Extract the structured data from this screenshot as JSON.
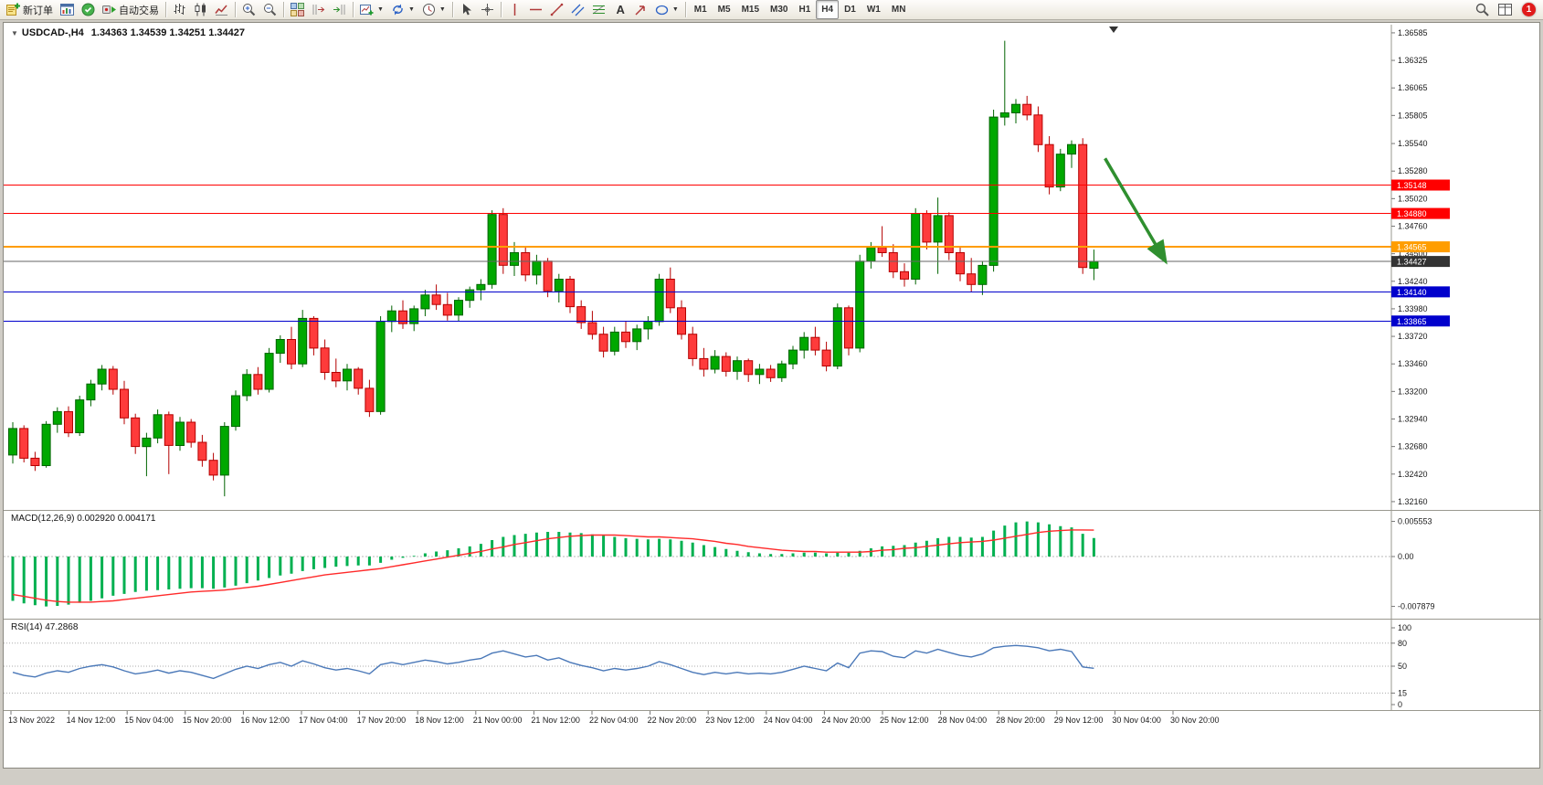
{
  "toolbar": {
    "badge_count": "1",
    "buttons": [
      {
        "name": "new-order-button",
        "icon": "new-order-icon",
        "label": "新订单",
        "group_start": true
      },
      {
        "name": "charts-button",
        "icon": "chart-window-icon"
      },
      {
        "name": "market-watch-button",
        "icon": "market-watch-icon"
      },
      {
        "name": "auto-trading-button",
        "icon": "auto-trading-icon",
        "label": "自动交易"
      },
      {
        "name": "bars-chart-button",
        "icon": "bars-chart-icon",
        "group_start": true
      },
      {
        "name": "candlestick-chart-button",
        "icon": "candlestick-chart-icon"
      },
      {
        "name": "line-chart-button",
        "icon": "line-chart-icon"
      },
      {
        "name": "zoom-in-button",
        "icon": "zoom-in-icon",
        "group_start": true
      },
      {
        "name": "zoom-out-button",
        "icon": "zoom-out-icon"
      },
      {
        "name": "tile-windows-button",
        "icon": "tile-windows-icon",
        "group_start": true
      },
      {
        "name": "chart-shift-button",
        "icon": "chart-shift-icon"
      },
      {
        "name": "auto-scroll-button",
        "icon": "auto-scroll-icon"
      },
      {
        "name": "new-chart-button",
        "icon": "new-chart-icon",
        "caret": true,
        "group_start": true
      },
      {
        "name": "profiles-button",
        "icon": "profiles-icon",
        "caret": true
      },
      {
        "name": "period-button",
        "icon": "clock-icon",
        "caret": true
      },
      {
        "name": "cursor-button",
        "icon": "cursor-icon",
        "group_start": true
      },
      {
        "name": "crosshair-button",
        "icon": "crosshair-icon"
      },
      {
        "name": "vertical-line-button",
        "icon": "vertical-line-icon",
        "group_start": true
      },
      {
        "name": "horizontal-line-button",
        "icon": "horizontal-line-icon"
      },
      {
        "name": "trendline-button",
        "icon": "trendline-icon"
      },
      {
        "name": "channel-button",
        "icon": "channel-icon"
      },
      {
        "name": "fibonacci-button",
        "icon": "fibonacci-icon"
      },
      {
        "name": "text-button",
        "icon": "text-icon"
      },
      {
        "name": "arrows-button",
        "icon": "arrow-label-icon"
      },
      {
        "name": "shapes-button",
        "icon": "shapes-icon",
        "caret": true
      }
    ],
    "timeframes": [
      "M1",
      "M5",
      "M15",
      "M30",
      "H1",
      "H4",
      "D1",
      "W1",
      "MN"
    ],
    "active_timeframe": "H4",
    "right_buttons": [
      {
        "name": "symbol-search-button",
        "icon": "search-icon"
      },
      {
        "name": "data-window-button",
        "icon": "data-window-icon"
      }
    ]
  },
  "chart_header": {
    "symbol_period": "USDCAD-,H4",
    "ohlc": "1.34363 1.34539 1.34251 1.34427"
  },
  "indicators": {
    "macd_label": "MACD(12,26,9) 0.002920 0.004171",
    "rsi_label": "RSI(14) 47.2868"
  },
  "chart_data": [
    {
      "type": "candlestick",
      "title": "USDCAD H4",
      "up_color": "#00a800",
      "up_border": "#006400",
      "down_color": "#fe3b3b",
      "down_border": "#b40000",
      "price_axis_labels": [
        "1.36585",
        "1.36325",
        "1.36065",
        "1.35805",
        "1.35540",
        "1.35280",
        "1.35020",
        "1.34760",
        "1.34500",
        "1.34240",
        "1.33980",
        "1.33720",
        "1.33460",
        "1.33200",
        "1.32940",
        "1.32680",
        "1.32420",
        "1.32160"
      ],
      "horizontal_lines": [
        {
          "price": 1.35148,
          "label": "1.35148",
          "color": "#ff0000",
          "width": 1
        },
        {
          "price": 1.3488,
          "label": "1.34880",
          "color": "#ff0000",
          "width": 1
        },
        {
          "price": 1.34565,
          "label": "1.34565",
          "color": "#ff9d00",
          "width": 2
        },
        {
          "price": 1.3414,
          "label": "1.34140",
          "color": "#0000cc",
          "width": 1
        },
        {
          "price": 1.33865,
          "label": "1.33865",
          "color": "#0000cc",
          "width": 1
        }
      ],
      "current_price": {
        "value": 1.34427,
        "label": "1.34427",
        "line_color": "#666666",
        "box_color": "#333333"
      },
      "arrow_annotation": {
        "from_bar": 98,
        "from_price": 1.354,
        "to_bar": 103.3,
        "to_price": 1.3445,
        "color": "#2f8f2f"
      },
      "x_labels": [
        "13 Nov 2022",
        "14 Nov 12:00",
        "15 Nov 04:00",
        "15 Nov 20:00",
        "16 Nov 12:00",
        "17 Nov 04:00",
        "17 Nov 20:00",
        "18 Nov 12:00",
        "21 Nov 00:00",
        "21 Nov 12:00",
        "22 Nov 04:00",
        "22 Nov 20:00",
        "23 Nov 12:00",
        "24 Nov 04:00",
        "24 Nov 20:00",
        "25 Nov 12:00",
        "28 Nov 04:00",
        "28 Nov 20:00",
        "29 Nov 12:00",
        "30 Nov 04:00",
        "30 Nov 20:00"
      ],
      "candles": [
        [
          1.326,
          1.3291,
          1.3252,
          1.3285
        ],
        [
          1.3285,
          1.3288,
          1.3253,
          1.3257
        ],
        [
          1.3257,
          1.3263,
          1.3245,
          1.325
        ],
        [
          1.325,
          1.3292,
          1.3248,
          1.3289
        ],
        [
          1.3289,
          1.3305,
          1.3281,
          1.3301
        ],
        [
          1.3301,
          1.3306,
          1.3277,
          1.3281
        ],
        [
          1.3281,
          1.3316,
          1.3278,
          1.3312
        ],
        [
          1.3312,
          1.3331,
          1.3306,
          1.3327
        ],
        [
          1.3327,
          1.3345,
          1.3321,
          1.3341
        ],
        [
          1.3341,
          1.3344,
          1.3317,
          1.3322
        ],
        [
          1.3322,
          1.333,
          1.3289,
          1.3295
        ],
        [
          1.3295,
          1.3299,
          1.3261,
          1.3268
        ],
        [
          1.3268,
          1.3281,
          1.324,
          1.3276
        ],
        [
          1.3276,
          1.3303,
          1.3271,
          1.3298
        ],
        [
          1.3298,
          1.3301,
          1.3242,
          1.3269
        ],
        [
          1.3269,
          1.3296,
          1.3264,
          1.3291
        ],
        [
          1.3291,
          1.3294,
          1.3267,
          1.3272
        ],
        [
          1.3272,
          1.3279,
          1.3249,
          1.3255
        ],
        [
          1.3255,
          1.3262,
          1.3236,
          1.3241
        ],
        [
          1.3241,
          1.3291,
          1.3221,
          1.3287
        ],
        [
          1.3287,
          1.3321,
          1.3283,
          1.3316
        ],
        [
          1.3316,
          1.3341,
          1.3311,
          1.3336
        ],
        [
          1.3336,
          1.3343,
          1.3317,
          1.3322
        ],
        [
          1.3322,
          1.3361,
          1.3319,
          1.3356
        ],
        [
          1.3356,
          1.3373,
          1.3347,
          1.3369
        ],
        [
          1.3369,
          1.3381,
          1.3341,
          1.3346
        ],
        [
          1.3346,
          1.3397,
          1.3343,
          1.3389
        ],
        [
          1.3389,
          1.3391,
          1.3354,
          1.3361
        ],
        [
          1.3361,
          1.3369,
          1.3331,
          1.3338
        ],
        [
          1.3338,
          1.3351,
          1.3324,
          1.333
        ],
        [
          1.333,
          1.3346,
          1.3321,
          1.3341
        ],
        [
          1.3341,
          1.3343,
          1.3317,
          1.3323
        ],
        [
          1.3323,
          1.3331,
          1.3296,
          1.3301
        ],
        [
          1.3301,
          1.3391,
          1.3298,
          1.3386
        ],
        [
          1.3386,
          1.3401,
          1.3376,
          1.3396
        ],
        [
          1.3396,
          1.3406,
          1.3379,
          1.3384
        ],
        [
          1.3384,
          1.3401,
          1.3377,
          1.3398
        ],
        [
          1.3398,
          1.3416,
          1.3391,
          1.3411
        ],
        [
          1.3411,
          1.3421,
          1.3397,
          1.3402
        ],
        [
          1.3402,
          1.3413,
          1.3387,
          1.3392
        ],
        [
          1.3392,
          1.3409,
          1.3386,
          1.3406
        ],
        [
          1.3406,
          1.3419,
          1.3399,
          1.3416
        ],
        [
          1.3416,
          1.3426,
          1.3406,
          1.3421
        ],
        [
          1.3421,
          1.3491,
          1.3417,
          1.3487
        ],
        [
          1.3487,
          1.3493,
          1.3431,
          1.3439
        ],
        [
          1.3439,
          1.3461,
          1.3429,
          1.3451
        ],
        [
          1.3451,
          1.3456,
          1.3424,
          1.343
        ],
        [
          1.343,
          1.3449,
          1.3421,
          1.3443
        ],
        [
          1.3443,
          1.3446,
          1.3409,
          1.3415
        ],
        [
          1.3415,
          1.3431,
          1.3404,
          1.3426
        ],
        [
          1.3426,
          1.3429,
          1.3394,
          1.34
        ],
        [
          1.34,
          1.3406,
          1.3379,
          1.3385
        ],
        [
          1.3385,
          1.3396,
          1.3369,
          1.3374
        ],
        [
          1.3374,
          1.3381,
          1.3352,
          1.3358
        ],
        [
          1.3358,
          1.3381,
          1.3354,
          1.3376
        ],
        [
          1.3376,
          1.3386,
          1.3361,
          1.3367
        ],
        [
          1.3367,
          1.3383,
          1.3359,
          1.3379
        ],
        [
          1.3379,
          1.3391,
          1.3369,
          1.3386
        ],
        [
          1.3386,
          1.3431,
          1.3382,
          1.3426
        ],
        [
          1.3426,
          1.3437,
          1.3394,
          1.3399
        ],
        [
          1.3399,
          1.3406,
          1.3369,
          1.3374
        ],
        [
          1.3374,
          1.3381,
          1.3344,
          1.3351
        ],
        [
          1.3351,
          1.3361,
          1.3334,
          1.3341
        ],
        [
          1.3341,
          1.3359,
          1.3337,
          1.3353
        ],
        [
          1.3353,
          1.3357,
          1.3334,
          1.3339
        ],
        [
          1.3339,
          1.3353,
          1.3331,
          1.3349
        ],
        [
          1.3349,
          1.3351,
          1.3329,
          1.3336
        ],
        [
          1.3336,
          1.3346,
          1.3327,
          1.3341
        ],
        [
          1.3341,
          1.3345,
          1.3329,
          1.3333
        ],
        [
          1.3333,
          1.3349,
          1.3329,
          1.3346
        ],
        [
          1.3346,
          1.3363,
          1.3341,
          1.3359
        ],
        [
          1.3359,
          1.3376,
          1.3351,
          1.3371
        ],
        [
          1.3371,
          1.3381,
          1.3354,
          1.3359
        ],
        [
          1.3359,
          1.3367,
          1.3339,
          1.3344
        ],
        [
          1.3344,
          1.3403,
          1.3341,
          1.3399
        ],
        [
          1.3399,
          1.3401,
          1.3354,
          1.3361
        ],
        [
          1.3361,
          1.3449,
          1.3357,
          1.3443
        ],
        [
          1.3443,
          1.3461,
          1.3436,
          1.3456
        ],
        [
          1.3456,
          1.3476,
          1.3447,
          1.3451
        ],
        [
          1.3451,
          1.3459,
          1.3427,
          1.3433
        ],
        [
          1.3433,
          1.3441,
          1.3419,
          1.3426
        ],
        [
          1.3426,
          1.3493,
          1.3421,
          1.3488
        ],
        [
          1.3488,
          1.3491,
          1.3454,
          1.3461
        ],
        [
          1.3461,
          1.3503,
          1.3431,
          1.3486
        ],
        [
          1.3486,
          1.3489,
          1.3444,
          1.3451
        ],
        [
          1.3451,
          1.3456,
          1.3424,
          1.3431
        ],
        [
          1.3431,
          1.3446,
          1.3414,
          1.3421
        ],
        [
          1.3421,
          1.3443,
          1.3411,
          1.3439
        ],
        [
          1.3439,
          1.3586,
          1.3433,
          1.3579
        ],
        [
          1.3579,
          1.3651,
          1.3571,
          1.3583
        ],
        [
          1.3583,
          1.3596,
          1.3573,
          1.3591
        ],
        [
          1.3591,
          1.3599,
          1.3576,
          1.3581
        ],
        [
          1.3581,
          1.3589,
          1.3546,
          1.3553
        ],
        [
          1.3553,
          1.3561,
          1.3506,
          1.3513
        ],
        [
          1.3513,
          1.3549,
          1.3509,
          1.3544
        ],
        [
          1.3544,
          1.3557,
          1.3531,
          1.3553
        ],
        [
          1.3553,
          1.3559,
          1.3431,
          1.3437
        ],
        [
          1.34363,
          1.34539,
          1.34251,
          1.34427
        ]
      ]
    },
    {
      "type": "bar",
      "name": "MACD(12,26,9)",
      "histogram_color": "#00b050",
      "signal_color": "#ff2a2a",
      "axis_labels": [
        {
          "text": "0.005553",
          "value": 0.005553
        },
        {
          "text": "0.00",
          "value": 0
        },
        {
          "text": "-0.007879",
          "value": -0.007879
        }
      ],
      "histogram": [
        -0.007,
        -0.0074,
        -0.0077,
        -0.00788,
        -0.0078,
        -0.0076,
        -0.0073,
        -0.007,
        -0.0066,
        -0.0062,
        -0.0059,
        -0.0056,
        -0.0054,
        -0.0053,
        -0.0052,
        -0.0051,
        -0.005,
        -0.005,
        -0.0051,
        -0.0049,
        -0.0046,
        -0.0042,
        -0.0038,
        -0.0034,
        -0.003,
        -0.0027,
        -0.0023,
        -0.002,
        -0.0018,
        -0.0016,
        -0.0015,
        -0.0014,
        -0.0014,
        -0.001,
        -0.0005,
        -0.0002,
        0.0001,
        0.0005,
        0.0008,
        0.001,
        0.0013,
        0.0016,
        0.002,
        0.0026,
        0.0031,
        0.0034,
        0.0036,
        0.0038,
        0.0039,
        0.0039,
        0.0038,
        0.0037,
        0.0035,
        0.0033,
        0.0031,
        0.0029,
        0.0028,
        0.0027,
        0.0028,
        0.0027,
        0.0025,
        0.0022,
        0.0018,
        0.0015,
        0.0012,
        0.0009,
        0.0007,
        0.0005,
        0.0004,
        0.0004,
        0.0005,
        0.0006,
        0.0006,
        0.0005,
        0.0006,
        0.0006,
        0.0009,
        0.0013,
        0.0016,
        0.0017,
        0.0018,
        0.0022,
        0.0025,
        0.0029,
        0.0031,
        0.0031,
        0.003,
        0.0031,
        0.0041,
        0.0049,
        0.0054,
        0.00555,
        0.0054,
        0.0051,
        0.0048,
        0.0046,
        0.0036,
        0.00292
      ],
      "signal": [
        -0.006,
        -0.0063,
        -0.0066,
        -0.0069,
        -0.0071,
        -0.0072,
        -0.0072,
        -0.0072,
        -0.0071,
        -0.007,
        -0.0068,
        -0.0066,
        -0.0064,
        -0.0062,
        -0.006,
        -0.0058,
        -0.0056,
        -0.0055,
        -0.0054,
        -0.0053,
        -0.0051,
        -0.0049,
        -0.0047,
        -0.0044,
        -0.0041,
        -0.0038,
        -0.0035,
        -0.0032,
        -0.0029,
        -0.0027,
        -0.0025,
        -0.0023,
        -0.0021,
        -0.0019,
        -0.0016,
        -0.0013,
        -0.001,
        -0.0007,
        -0.0004,
        -0.0001,
        0.0002,
        0.0005,
        0.0008,
        0.0012,
        0.0015,
        0.0019,
        0.0022,
        0.0025,
        0.0028,
        0.003,
        0.0032,
        0.0033,
        0.0034,
        0.0034,
        0.0034,
        0.0033,
        0.0032,
        0.0031,
        0.0031,
        0.003,
        0.0029,
        0.0028,
        0.0026,
        0.0024,
        0.0021,
        0.0019,
        0.0016,
        0.0014,
        0.0012,
        0.001,
        0.0009,
        0.0008,
        0.0008,
        0.0007,
        0.0007,
        0.0007,
        0.0007,
        0.0008,
        0.001,
        0.0011,
        0.0013,
        0.0014,
        0.0016,
        0.0018,
        0.002,
        0.0022,
        0.0023,
        0.0024,
        0.0026,
        0.0029,
        0.0032,
        0.0035,
        0.0038,
        0.004,
        0.0041,
        0.0042,
        0.0042,
        0.004171
      ]
    },
    {
      "type": "line",
      "name": "RSI(14)",
      "line_color": "#4a78b8",
      "range": [
        0,
        100
      ],
      "levels": [
        80,
        50,
        15
      ],
      "axis_labels": [
        {
          "text": "100",
          "value": 100
        },
        {
          "text": "80",
          "value": 80
        },
        {
          "text": "50",
          "value": 50
        },
        {
          "text": "15",
          "value": 15
        },
        {
          "text": "0",
          "value": 0
        }
      ],
      "values": [
        42,
        38,
        36,
        41,
        44,
        42,
        47,
        50,
        52,
        49,
        44,
        40,
        42,
        45,
        41,
        44,
        42,
        38,
        34,
        40,
        46,
        50,
        47,
        52,
        55,
        50,
        57,
        53,
        48,
        45,
        47,
        44,
        40,
        52,
        55,
        52,
        55,
        58,
        56,
        53,
        55,
        58,
        60,
        67,
        70,
        66,
        62,
        64,
        58,
        61,
        55,
        51,
        48,
        44,
        47,
        45,
        47,
        50,
        56,
        52,
        47,
        42,
        39,
        42,
        40,
        42,
        40,
        41,
        40,
        42,
        46,
        50,
        47,
        44,
        54,
        48,
        67,
        70,
        69,
        63,
        61,
        70,
        67,
        72,
        68,
        64,
        62,
        66,
        74,
        76,
        77,
        76,
        74,
        70,
        72,
        69,
        49,
        47.2868
      ]
    }
  ]
}
